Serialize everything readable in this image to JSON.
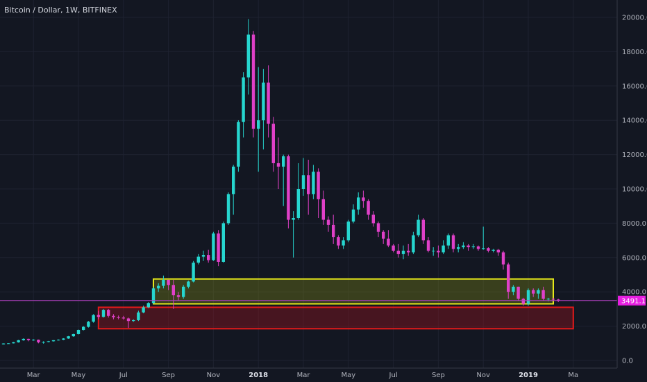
{
  "chart_title": "Bitcoin / Dollar, 1W, BITFINEX",
  "colors": {
    "up": "#26d6cf",
    "down": "#e040c8",
    "background": "#131722",
    "grid": "#1e2230",
    "price_line": "#b040c0",
    "price_label_bg": "#e61fe0",
    "yellow_zone": "#e6e81a",
    "red_zone": "#e31a1a"
  },
  "chart_data": {
    "type": "candlestick",
    "title": "Bitcoin / Dollar, 1W, BITFINEX",
    "interval": "1W",
    "exchange": "BITFINEX",
    "ylim": [
      0,
      20000
    ],
    "y_ticks": [
      0,
      2000,
      4000,
      6000,
      8000,
      10000,
      12000,
      14000,
      16000,
      18000,
      20000
    ],
    "y_tick_labels": [
      "0.0",
      "2000.0",
      "4000.0",
      "6000.0",
      "8000.0",
      "10000.0",
      "12000.0",
      "14000.0",
      "16000.0",
      "18000.0",
      "20000.0"
    ],
    "x_ticks": [
      {
        "label": "Mar",
        "week": 6,
        "bold": false
      },
      {
        "label": "May",
        "week": 15,
        "bold": false
      },
      {
        "label": "Jul",
        "week": 24,
        "bold": false
      },
      {
        "label": "Sep",
        "week": 33,
        "bold": false
      },
      {
        "label": "Nov",
        "week": 42,
        "bold": false
      },
      {
        "label": "2018",
        "week": 51,
        "bold": true
      },
      {
        "label": "Mar",
        "week": 60,
        "bold": false
      },
      {
        "label": "May",
        "week": 69,
        "bold": false
      },
      {
        "label": "Jul",
        "week": 78,
        "bold": false
      },
      {
        "label": "Sep",
        "week": 87,
        "bold": false
      },
      {
        "label": "Nov",
        "week": 96,
        "bold": false
      },
      {
        "label": "2019",
        "week": 105,
        "bold": true
      },
      {
        "label": "Ma",
        "week": 114,
        "bold": false
      }
    ],
    "last_price": 3491.1,
    "last_price_label": "3491.1",
    "zones": [
      {
        "name": "yellow",
        "week_start": 30,
        "week_end": 110,
        "low": 3300,
        "high": 4750
      },
      {
        "name": "red",
        "week_start": 19,
        "week_end": 114,
        "low": 1850,
        "high": 3100
      }
    ],
    "candles": [
      [
        940,
        1000,
        930,
        990
      ],
      [
        990,
        1010,
        980,
        1000
      ],
      [
        1000,
        1080,
        990,
        1060
      ],
      [
        1060,
        1200,
        1040,
        1180
      ],
      [
        1180,
        1290,
        1150,
        1260
      ],
      [
        1260,
        1270,
        1120,
        1190
      ],
      [
        1190,
        1240,
        1150,
        1210
      ],
      [
        1210,
        1220,
        1000,
        1060
      ],
      [
        1060,
        1120,
        980,
        1080
      ],
      [
        1080,
        1140,
        1060,
        1120
      ],
      [
        1120,
        1190,
        1100,
        1180
      ],
      [
        1180,
        1230,
        1160,
        1210
      ],
      [
        1210,
        1300,
        1190,
        1280
      ],
      [
        1280,
        1430,
        1260,
        1410
      ],
      [
        1410,
        1560,
        1380,
        1540
      ],
      [
        1540,
        1800,
        1520,
        1780
      ],
      [
        1780,
        2000,
        1750,
        1960
      ],
      [
        1960,
        2300,
        1920,
        2260
      ],
      [
        2260,
        2700,
        2200,
        2650
      ],
      [
        2650,
        2900,
        2400,
        2540
      ],
      [
        2540,
        3000,
        2500,
        2950
      ],
      [
        2950,
        3000,
        2500,
        2600
      ],
      [
        2600,
        2700,
        2400,
        2520
      ],
      [
        2520,
        2620,
        2400,
        2500
      ],
      [
        2500,
        2600,
        2380,
        2450
      ],
      [
        2450,
        2500,
        1900,
        2300
      ],
      [
        2300,
        2400,
        2250,
        2350
      ],
      [
        2350,
        2900,
        2300,
        2800
      ],
      [
        2800,
        3200,
        2750,
        3100
      ],
      [
        3100,
        3400,
        3050,
        3350
      ],
      [
        3350,
        4300,
        3300,
        4200
      ],
      [
        4200,
        4500,
        4000,
        4350
      ],
      [
        4350,
        4950,
        4200,
        4700
      ],
      [
        4700,
        4700,
        4100,
        4400
      ],
      [
        4400,
        4700,
        3000,
        3800
      ],
      [
        3800,
        4000,
        3500,
        3700
      ],
      [
        3700,
        4400,
        3600,
        4300
      ],
      [
        4300,
        4650,
        4200,
        4600
      ],
      [
        4600,
        5800,
        4550,
        5700
      ],
      [
        5700,
        6200,
        5600,
        6050
      ],
      [
        6050,
        6400,
        5800,
        6150
      ],
      [
        6150,
        6450,
        5700,
        5850
      ],
      [
        5850,
        7500,
        5800,
        7400
      ],
      [
        7400,
        7600,
        5500,
        5750
      ],
      [
        5750,
        8100,
        5700,
        8000
      ],
      [
        8000,
        9800,
        7900,
        9700
      ],
      [
        9700,
        11400,
        8500,
        11300
      ],
      [
        11300,
        14000,
        11000,
        13900
      ],
      [
        13900,
        16800,
        13000,
        16500
      ],
      [
        16500,
        19900,
        15500,
        19000
      ],
      [
        19000,
        19200,
        13000,
        13500
      ],
      [
        13500,
        17100,
        11000,
        14000
      ],
      [
        14000,
        17000,
        12300,
        16200
      ],
      [
        16200,
        17200,
        13000,
        13800
      ],
      [
        13800,
        14200,
        11000,
        11500
      ],
      [
        11500,
        13000,
        10000,
        11300
      ],
      [
        11300,
        12000,
        9000,
        11900
      ],
      [
        11900,
        12000,
        7700,
        8200
      ],
      [
        8200,
        8700,
        6000,
        8300
      ],
      [
        8300,
        11500,
        8200,
        10000
      ],
      [
        10000,
        11800,
        9600,
        10800
      ],
      [
        10800,
        11700,
        8500,
        9700
      ],
      [
        9700,
        11400,
        9400,
        11000
      ],
      [
        11000,
        11200,
        8300,
        9400
      ],
      [
        9400,
        9900,
        7900,
        8200
      ],
      [
        8200,
        8400,
        7500,
        7900
      ],
      [
        7900,
        8500,
        6800,
        7200
      ],
      [
        7200,
        7300,
        6500,
        6700
      ],
      [
        6700,
        7200,
        6500,
        7000
      ],
      [
        7000,
        8200,
        6900,
        8100
      ],
      [
        8100,
        9100,
        8000,
        8800
      ],
      [
        8800,
        9800,
        8500,
        9500
      ],
      [
        9500,
        9900,
        8900,
        9300
      ],
      [
        9300,
        9400,
        8200,
        8500
      ],
      [
        8500,
        8700,
        7800,
        8000
      ],
      [
        8000,
        8100,
        7200,
        7500
      ],
      [
        7500,
        7600,
        6800,
        7100
      ],
      [
        7100,
        7600,
        6600,
        6700
      ],
      [
        6700,
        6800,
        6300,
        6400
      ],
      [
        6400,
        6800,
        6000,
        6200
      ],
      [
        6200,
        6700,
        5900,
        6400
      ],
      [
        6400,
        6800,
        6100,
        6300
      ],
      [
        6300,
        7500,
        6200,
        7300
      ],
      [
        7300,
        8500,
        7200,
        8200
      ],
      [
        8200,
        8300,
        6800,
        7000
      ],
      [
        7000,
        7200,
        6300,
        6400
      ],
      [
        6400,
        6600,
        6100,
        6400
      ],
      [
        6400,
        6700,
        6000,
        6300
      ],
      [
        6300,
        7000,
        6200,
        6700
      ],
      [
        6700,
        7400,
        6500,
        7300
      ],
      [
        7300,
        7400,
        6300,
        6500
      ],
      [
        6500,
        6800,
        6300,
        6600
      ],
      [
        6600,
        6900,
        6500,
        6700
      ],
      [
        6700,
        6800,
        6400,
        6600
      ],
      [
        6600,
        6800,
        6500,
        6650
      ],
      [
        6650,
        6700,
        6400,
        6500
      ],
      [
        6500,
        7800,
        6450,
        6550
      ],
      [
        6550,
        6600,
        6300,
        6400
      ],
      [
        6400,
        6500,
        6300,
        6450
      ],
      [
        6450,
        6500,
        6100,
        6300
      ],
      [
        6300,
        6400,
        5300,
        5600
      ],
      [
        5600,
        5700,
        3600,
        4000
      ],
      [
        4000,
        4400,
        3800,
        4300
      ],
      [
        4300,
        4300,
        3500,
        3600
      ],
      [
        3600,
        3650,
        3200,
        3300
      ],
      [
        3300,
        4200,
        3200,
        4100
      ],
      [
        4100,
        4200,
        3700,
        3900
      ],
      [
        3900,
        4200,
        3600,
        4100
      ],
      [
        4100,
        4300,
        3500,
        3600
      ],
      [
        3600,
        3650,
        3450,
        3600
      ],
      [
        3600,
        3650,
        3450,
        3550
      ],
      [
        3550,
        3600,
        3400,
        3491
      ]
    ]
  }
}
